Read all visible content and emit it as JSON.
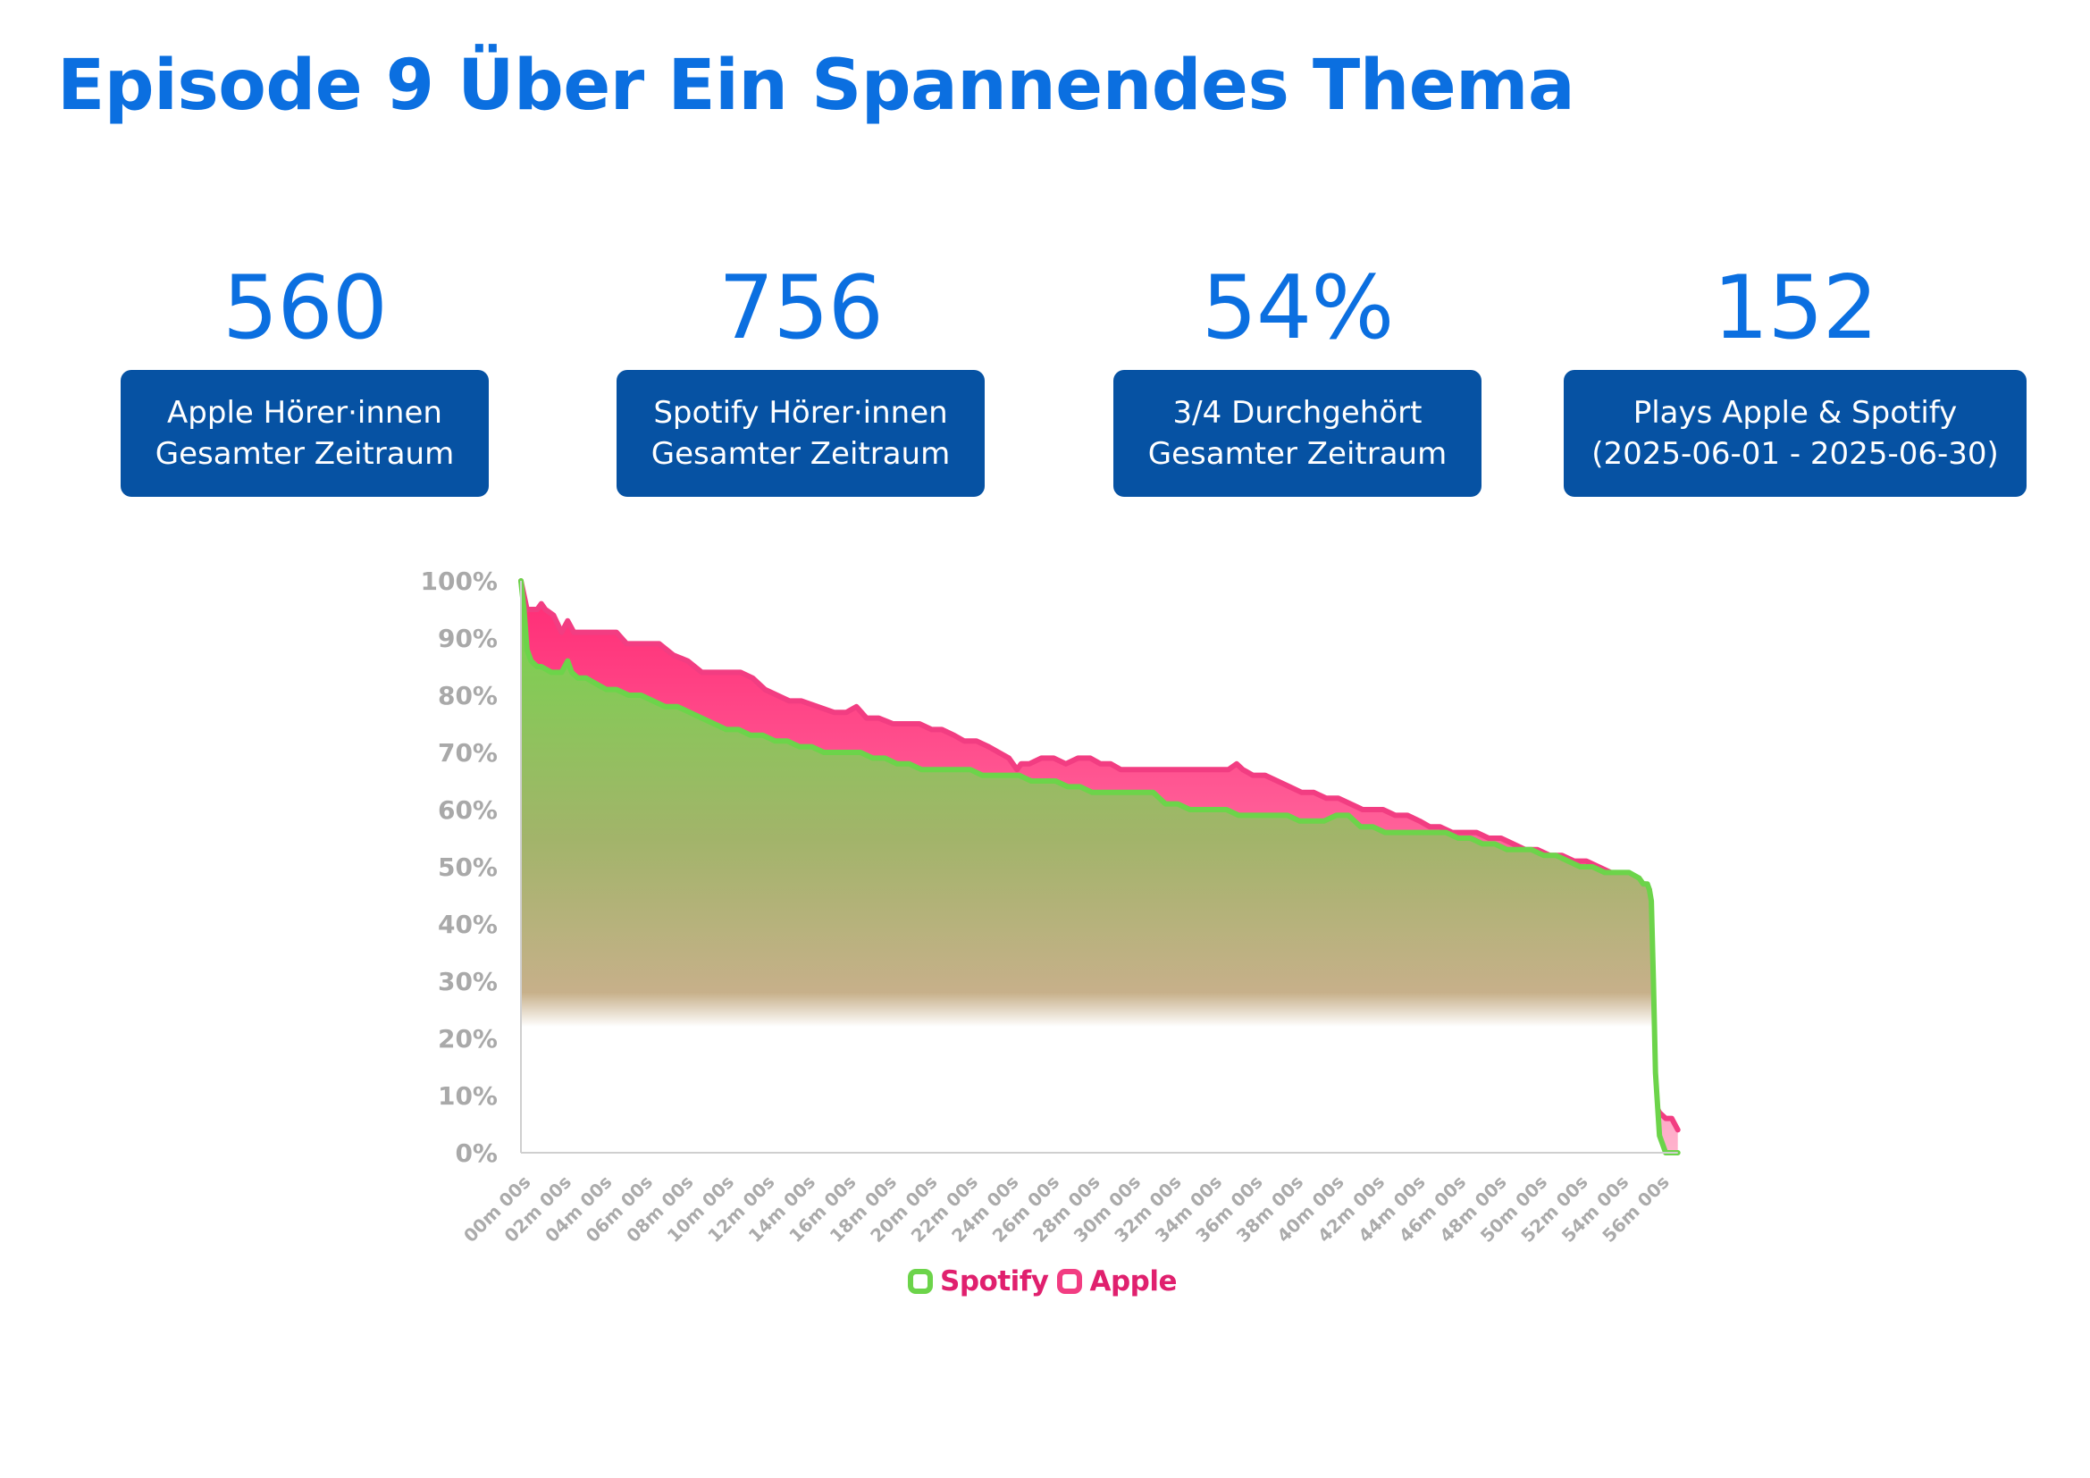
{
  "page_title": "Episode 9 Über Ein Spannendes Thema",
  "kpis": [
    {
      "value": "560",
      "line1": "Apple Hörer·innen",
      "line2": "Gesamter Zeitraum"
    },
    {
      "value": "756",
      "line1": "Spotify Hörer·innen",
      "line2": "Gesamter Zeitraum"
    },
    {
      "value": "54%",
      "line1": "3/4 Durchgehört",
      "line2": "Gesamter Zeitraum"
    },
    {
      "value": "152",
      "line1": "Plays Apple & Spotify",
      "line2": "(2025-06-01 - 2025-06-30)"
    }
  ],
  "colors": {
    "title": "#0b6fe0",
    "kpi_box": "#0652a3",
    "spotify": "#6cd44a",
    "apple": "#f23d82",
    "apple_label": "#e0206e",
    "axis_text": "#a9a9a9"
  },
  "chart_data": {
    "type": "area",
    "title": "",
    "xlabel": "",
    "ylabel": "",
    "x_unit": "minutes",
    "xlim": [
      0,
      57
    ],
    "ylim": [
      0,
      100
    ],
    "y_ticks": [
      0,
      10,
      20,
      30,
      40,
      50,
      60,
      70,
      80,
      90,
      100
    ],
    "y_tick_labels": [
      "0%",
      "10%",
      "20%",
      "30%",
      "40%",
      "50%",
      "60%",
      "70%",
      "80%",
      "90%",
      "100%"
    ],
    "x_ticks": [
      0,
      2,
      4,
      6,
      8,
      10,
      12,
      14,
      16,
      18,
      20,
      22,
      24,
      26,
      28,
      30,
      32,
      34,
      36,
      38,
      40,
      42,
      44,
      46,
      48,
      50,
      52,
      54,
      56
    ],
    "x_tick_labels": [
      "00m 00s",
      "02m 00s",
      "04m 00s",
      "06m 00s",
      "08m 00s",
      "10m 00s",
      "12m 00s",
      "14m 00s",
      "16m 00s",
      "18m 00s",
      "20m 00s",
      "22m 00s",
      "24m 00s",
      "26m 00s",
      "28m 00s",
      "30m 00s",
      "32m 00s",
      "34m 00s",
      "36m 00s",
      "38m 00s",
      "40m 00s",
      "42m 00s",
      "44m 00s",
      "46m 00s",
      "48m 00s",
      "50m 00s",
      "52m 00s",
      "54m 00s",
      "56m 00s"
    ],
    "grid": false,
    "legend_position": "bottom-center",
    "series": [
      {
        "name": "Apple",
        "color": "#f23d82",
        "x": [
          0,
          0.3,
          0.5,
          0.8,
          1.0,
          1.2,
          1.6,
          2.0,
          2.3,
          2.6,
          3.0,
          3.5,
          4.0,
          4.4,
          4.7,
          5.2,
          5.7,
          6.3,
          6.8,
          7.5,
          8.2,
          8.9,
          9.3,
          9.7,
          10.2,
          10.8,
          11.4,
          12.0,
          12.6,
          13.2,
          13.8,
          14.6,
          15.4,
          16.0,
          16.5,
          17.0,
          17.6,
          18.3,
          19.0,
          19.6,
          20.2,
          20.7,
          21.3,
          21.8,
          22.4,
          23.0,
          23.5,
          24.0,
          24.4,
          24.6,
          25.0,
          25.6,
          26.2,
          26.8,
          27.4,
          28.0,
          28.5,
          29.0,
          29.5,
          30.0,
          30.6,
          31.2,
          31.8,
          32.4,
          33.0,
          33.6,
          34.2,
          34.8,
          35.2,
          35.5,
          36.0,
          36.6,
          37.2,
          37.8,
          38.4,
          39.0,
          39.6,
          40.2,
          40.8,
          41.4,
          41.9,
          42.4,
          43.0,
          43.6,
          44.2,
          44.7,
          45.2,
          45.8,
          46.4,
          47.0,
          47.6,
          48.2,
          48.8,
          49.4,
          50.0,
          50.6,
          51.2,
          51.8,
          52.4,
          53.0,
          53.6,
          54.2,
          54.8,
          55.3,
          55.5,
          55.6,
          55.7,
          55.85,
          56.0,
          56.3,
          56.6,
          56.9
        ],
        "values": [
          100,
          95,
          95,
          95,
          96,
          95,
          94,
          91,
          93,
          91,
          91,
          91,
          91,
          91,
          91,
          89,
          89,
          89,
          89,
          87,
          86,
          84,
          84,
          84,
          84,
          84,
          83,
          81,
          80,
          79,
          79,
          78,
          77,
          77,
          78,
          76,
          76,
          75,
          75,
          75,
          74,
          74,
          73,
          72,
          72,
          71,
          70,
          69,
          67,
          68,
          68,
          69,
          69,
          68,
          69,
          69,
          68,
          68,
          67,
          67,
          67,
          67,
          67,
          67,
          67,
          67,
          67,
          67,
          68,
          67,
          66,
          66,
          65,
          64,
          63,
          63,
          62,
          62,
          61,
          60,
          60,
          60,
          59,
          59,
          58,
          57,
          57,
          56,
          56,
          56,
          55,
          55,
          54,
          53,
          53,
          52,
          52,
          51,
          51,
          50,
          49,
          48,
          47,
          47,
          46,
          40,
          20,
          8,
          7,
          6,
          6,
          4
        ]
      },
      {
        "name": "Spotify",
        "color": "#6cd44a",
        "x": [
          0,
          0.15,
          0.3,
          0.5,
          0.8,
          1.0,
          1.5,
          2.0,
          2.3,
          2.5,
          2.8,
          3.2,
          3.7,
          4.2,
          4.7,
          5.3,
          5.9,
          6.5,
          7.1,
          7.7,
          8.3,
          8.9,
          9.5,
          10.1,
          10.7,
          11.3,
          11.9,
          12.5,
          13.1,
          13.7,
          14.3,
          14.9,
          15.5,
          16.1,
          16.7,
          17.3,
          17.9,
          18.5,
          19.1,
          19.7,
          20.3,
          20.9,
          21.5,
          22.1,
          22.7,
          23.3,
          23.9,
          24.5,
          25.1,
          25.7,
          26.3,
          26.9,
          27.5,
          28.1,
          28.7,
          29.3,
          29.9,
          30.5,
          31.1,
          31.7,
          32.3,
          32.9,
          33.5,
          34.1,
          34.7,
          35.3,
          35.9,
          36.5,
          37.1,
          37.7,
          38.3,
          38.9,
          39.5,
          40.1,
          40.7,
          41.3,
          41.9,
          42.5,
          43.1,
          43.7,
          44.3,
          44.9,
          45.5,
          46.1,
          46.7,
          47.3,
          47.9,
          48.5,
          49.1,
          49.7,
          50.3,
          50.9,
          51.5,
          52.1,
          52.7,
          53.3,
          53.9,
          54.5,
          55.0,
          55.2,
          55.4,
          55.5,
          55.6,
          55.7,
          55.8,
          56.0,
          56.3,
          56.9
        ],
        "values": [
          100,
          95,
          88,
          86,
          85,
          85,
          84,
          84,
          86,
          84,
          83,
          83,
          82,
          81,
          81,
          80,
          80,
          79,
          78,
          78,
          77,
          76,
          75,
          74,
          74,
          73,
          73,
          72,
          72,
          71,
          71,
          70,
          70,
          70,
          70,
          69,
          69,
          68,
          68,
          67,
          67,
          67,
          67,
          67,
          66,
          66,
          66,
          66,
          65,
          65,
          65,
          64,
          64,
          63,
          63,
          63,
          63,
          63,
          63,
          61,
          61,
          60,
          60,
          60,
          60,
          59,
          59,
          59,
          59,
          59,
          58,
          58,
          58,
          59,
          59,
          57,
          57,
          56,
          56,
          56,
          56,
          56,
          56,
          55,
          55,
          54,
          54,
          53,
          53,
          53,
          52,
          52,
          51,
          50,
          50,
          49,
          49,
          49,
          48,
          47,
          47,
          46,
          44,
          30,
          14,
          3,
          0,
          0
        ]
      }
    ]
  }
}
